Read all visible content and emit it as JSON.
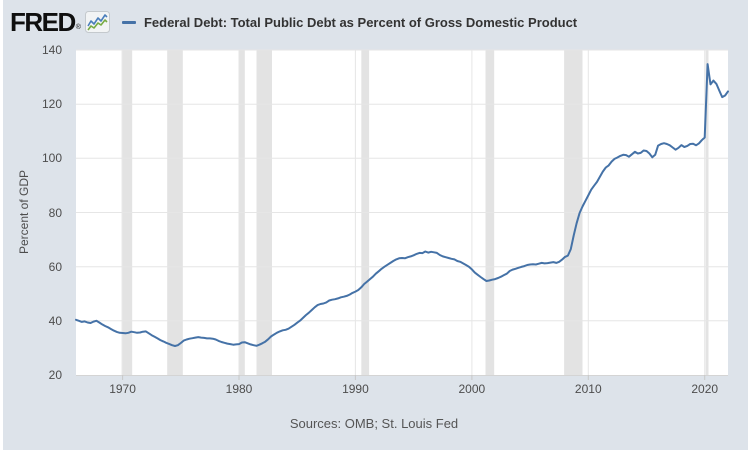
{
  "header": {
    "logo": {
      "text": "FRED",
      "registered": "®"
    },
    "legend": {
      "marker_color": "#4572a7",
      "label": "Federal Debt: Total Public Debt as Percent of Gross Domestic Product"
    }
  },
  "y_axis": {
    "title": "Percent of GDP"
  },
  "footer": {
    "sources": "Sources: OMB; St. Louis Fed"
  },
  "colors": {
    "background": "#dde3ea",
    "plot_background": "#ffffff",
    "line": "#4572a7",
    "grid": "#e6e6e6",
    "recession_band": "#e3e3e3",
    "axis_line": "#d4d4d4",
    "tick_mark": "#c8c8c8",
    "label_text": "#4d4d4d",
    "legend_text": "#333333",
    "source_text": "#555555",
    "icon_blue": "#4a7ebb",
    "icon_green": "#77ab43"
  },
  "chart_data": {
    "type": "line",
    "title": "Federal Debt: Total Public Debt as Percent of Gross Domestic Product",
    "xlabel": "",
    "ylabel": "Percent of GDP",
    "legend_position": "top",
    "grid": true,
    "xlim": [
      1966,
      2022
    ],
    "ylim": [
      20,
      140
    ],
    "x_ticks": [
      1970,
      1980,
      1990,
      2000,
      2010,
      2020
    ],
    "y_ticks": [
      20,
      40,
      60,
      80,
      100,
      120,
      140
    ],
    "recession_bands": [
      [
        1969.92,
        1970.83
      ],
      [
        1973.83,
        1975.17
      ],
      [
        1980.0,
        1980.5
      ],
      [
        1981.5,
        1982.83
      ],
      [
        1990.5,
        1991.17
      ],
      [
        2001.17,
        2001.92
      ],
      [
        2007.92,
        2009.5
      ],
      [
        2020.08,
        2020.33
      ]
    ],
    "series": [
      {
        "name": "Federal Debt: Total Public Debt as Percent of Gross Domestic Product",
        "units": "Percent of GDP",
        "frequency": "quarterly",
        "start": 1966.0,
        "step": 0.25,
        "values": [
          40.4,
          40.0,
          39.6,
          39.8,
          39.4,
          39.2,
          39.7,
          40.0,
          39.4,
          38.7,
          38.1,
          37.6,
          37.0,
          36.4,
          35.9,
          35.6,
          35.5,
          35.4,
          35.6,
          36.0,
          35.8,
          35.6,
          35.7,
          36.0,
          36.1,
          35.4,
          34.7,
          34.1,
          33.5,
          32.9,
          32.4,
          31.9,
          31.5,
          31.0,
          30.7,
          31.0,
          31.8,
          32.7,
          33.1,
          33.4,
          33.6,
          33.8,
          34.0,
          33.8,
          33.7,
          33.5,
          33.5,
          33.4,
          33.1,
          32.6,
          32.2,
          31.9,
          31.6,
          31.4,
          31.2,
          31.3,
          31.4,
          32.0,
          32.1,
          31.7,
          31.3,
          31.0,
          30.8,
          31.2,
          31.7,
          32.3,
          33.2,
          34.2,
          34.9,
          35.6,
          36.1,
          36.5,
          36.7,
          37.1,
          37.8,
          38.5,
          39.3,
          40.1,
          41.1,
          42.1,
          43.0,
          44.0,
          45.0,
          45.8,
          46.2,
          46.4,
          46.8,
          47.5,
          47.8,
          48.0,
          48.3,
          48.7,
          48.9,
          49.2,
          49.7,
          50.3,
          50.8,
          51.4,
          52.4,
          53.6,
          54.5,
          55.4,
          56.3,
          57.4,
          58.3,
          59.2,
          60.0,
          60.7,
          61.4,
          62.1,
          62.7,
          63.1,
          63.2,
          63.1,
          63.5,
          63.8,
          64.2,
          64.7,
          65.1,
          65.0,
          65.6,
          65.2,
          65.5,
          65.3,
          65.1,
          64.3,
          63.8,
          63.5,
          63.2,
          62.9,
          62.7,
          62.1,
          61.8,
          61.2,
          60.6,
          60.0,
          59.0,
          57.8,
          57.0,
          56.2,
          55.4,
          54.7,
          54.9,
          55.2,
          55.4,
          55.8,
          56.3,
          56.9,
          57.4,
          58.4,
          58.9,
          59.2,
          59.6,
          59.9,
          60.2,
          60.6,
          60.8,
          60.9,
          60.8,
          61.1,
          61.4,
          61.2,
          61.3,
          61.5,
          61.7,
          61.4,
          61.8,
          62.6,
          63.6,
          64.1,
          66.5,
          71.5,
          76.0,
          79.8,
          82.2,
          84.3,
          86.3,
          88.4,
          89.9,
          91.3,
          93.2,
          95.1,
          96.6,
          97.4,
          98.8,
          99.8,
          100.3,
          100.9,
          101.3,
          101.2,
          100.6,
          101.5,
          102.4,
          101.8,
          102.0,
          102.9,
          102.7,
          101.8,
          100.4,
          101.3,
          104.7,
          105.3,
          105.6,
          105.3,
          104.8,
          104.0,
          103.2,
          103.9,
          104.9,
          104.2,
          104.6,
          105.3,
          105.4,
          104.8,
          105.5,
          106.7,
          107.7,
          134.8,
          127.3,
          128.7,
          127.5,
          125.0,
          122.6,
          123.2,
          124.7
        ]
      }
    ]
  }
}
